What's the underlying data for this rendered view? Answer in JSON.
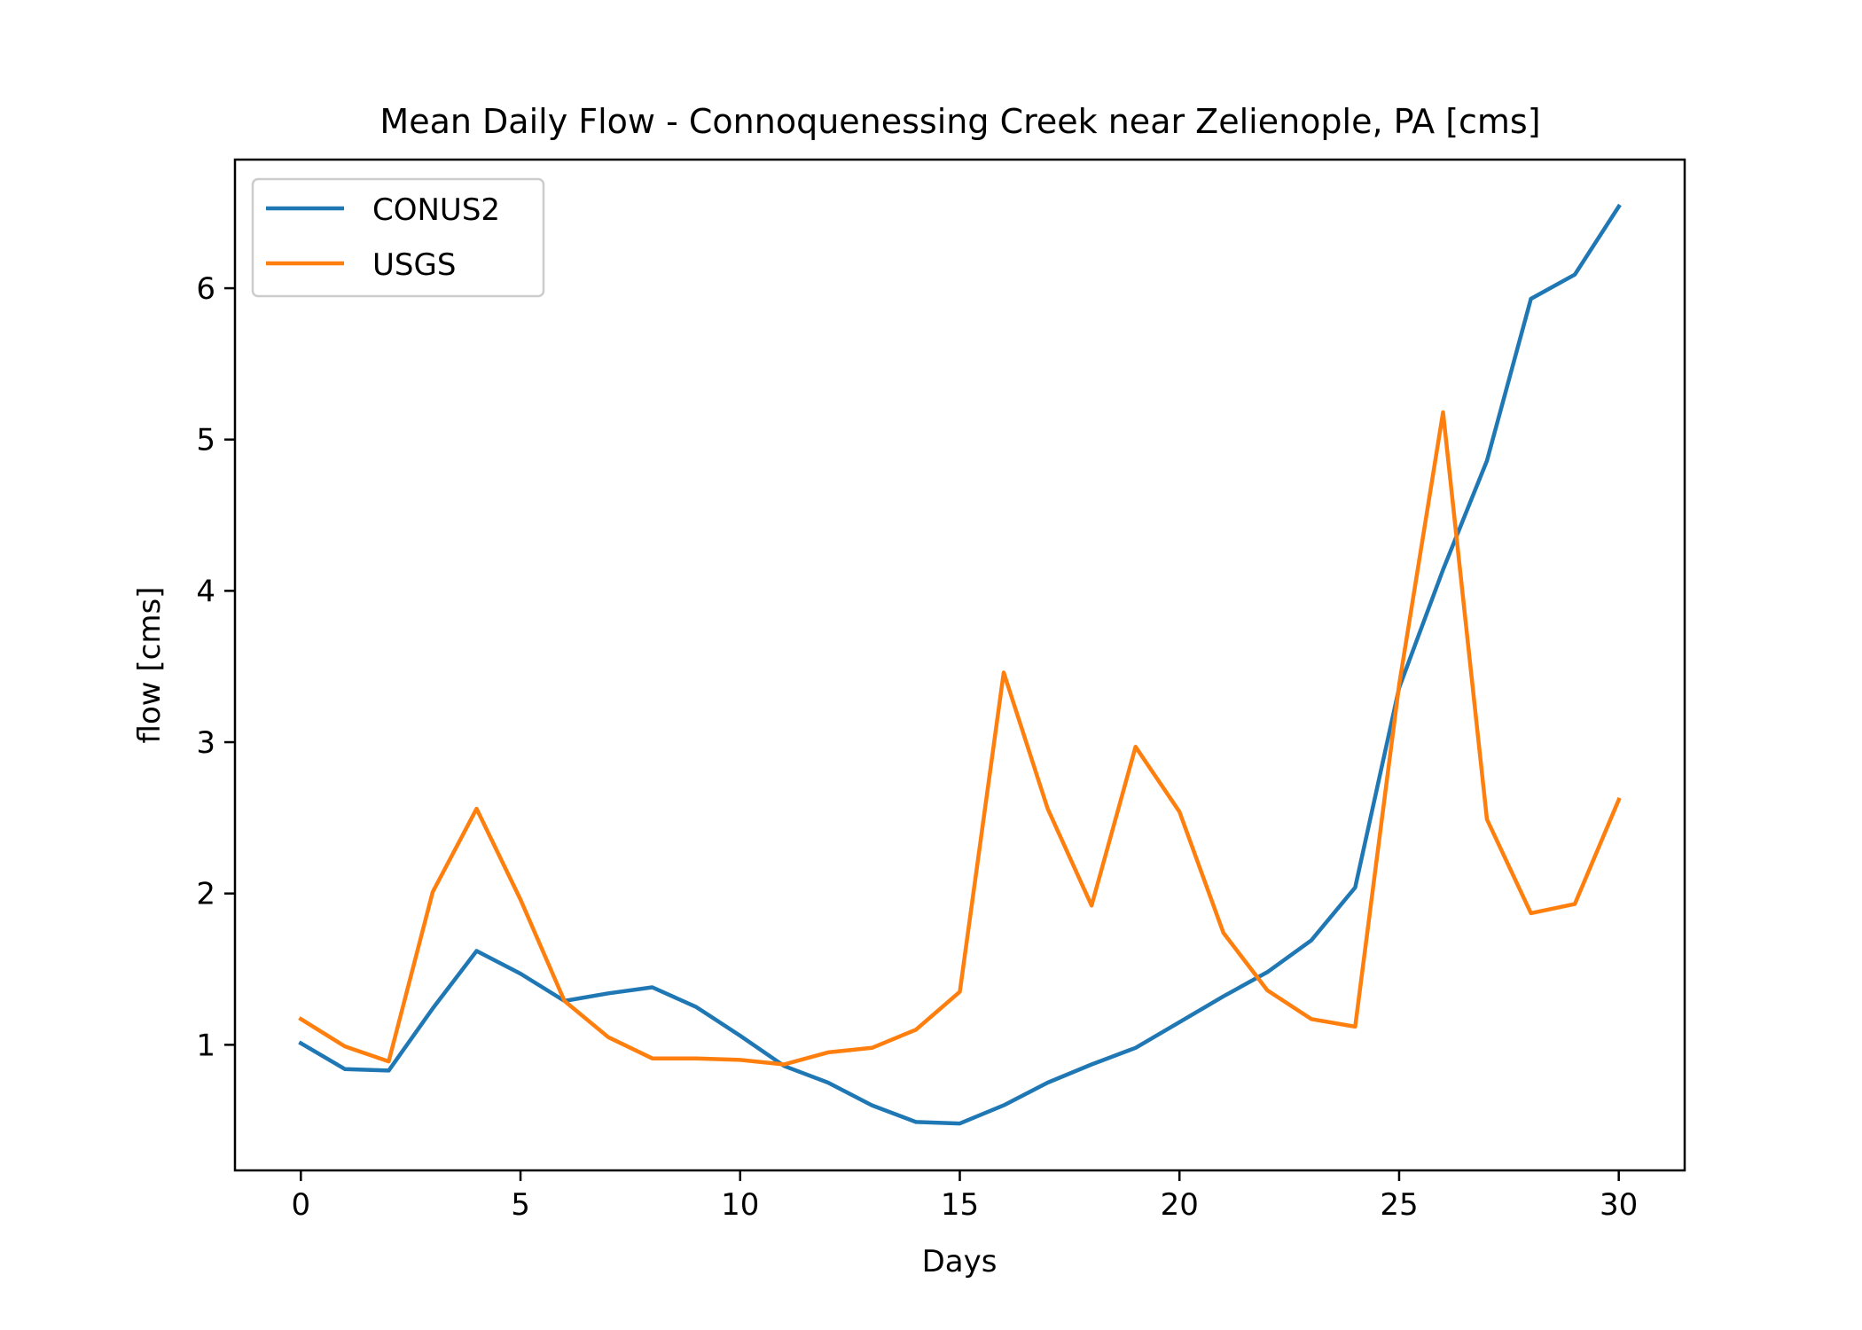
{
  "chart_data": {
    "type": "line",
    "title": "Mean Daily Flow - Connoquenessing Creek near Zelienople, PA [cms]",
    "xlabel": "Days",
    "ylabel": "flow [cms]",
    "xlim": [
      -1.5,
      31.5
    ],
    "ylim": [
      0.17,
      6.85
    ],
    "xticks": [
      0,
      5,
      10,
      15,
      20,
      25,
      30
    ],
    "yticks": [
      1,
      2,
      3,
      4,
      5,
      6
    ],
    "grid": false,
    "legend_position": "upper-left",
    "x": [
      0,
      1,
      2,
      3,
      4,
      5,
      6,
      7,
      8,
      9,
      10,
      11,
      12,
      13,
      14,
      15,
      16,
      17,
      18,
      19,
      20,
      21,
      22,
      23,
      24,
      25,
      26,
      27,
      28,
      29,
      30
    ],
    "series": [
      {
        "name": "CONUS2",
        "color": "#1f77b4",
        "values": [
          1.01,
          0.84,
          0.83,
          1.24,
          1.62,
          1.47,
          1.29,
          1.34,
          1.38,
          1.25,
          1.06,
          0.86,
          0.75,
          0.6,
          0.49,
          0.48,
          0.6,
          0.75,
          0.87,
          0.98,
          1.15,
          1.32,
          1.48,
          1.69,
          2.04,
          3.36,
          4.14,
          4.86,
          5.93,
          6.09,
          6.54
        ]
      },
      {
        "name": "USGS",
        "color": "#ff7f0e",
        "values": [
          1.17,
          0.99,
          0.89,
          2.01,
          2.56,
          1.96,
          1.29,
          1.05,
          0.91,
          0.91,
          0.9,
          0.87,
          0.95,
          0.98,
          1.1,
          1.35,
          3.46,
          2.56,
          1.92,
          2.97,
          2.54,
          1.74,
          1.36,
          1.17,
          1.12,
          3.38,
          5.18,
          2.49,
          1.87,
          1.93,
          2.62
        ]
      }
    ]
  }
}
